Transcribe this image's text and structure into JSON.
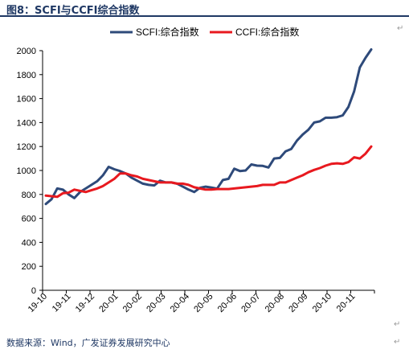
{
  "header": {
    "title": "图8：SCFI与CCFI综合指数"
  },
  "footer": {
    "source": "数据来源：Wind，广发证券发展研究中心"
  },
  "chart_data": {
    "type": "line",
    "title": "",
    "xlabel": "",
    "ylabel": "",
    "ylim": [
      0,
      2000
    ],
    "y_ticks": [
      0,
      200,
      400,
      600,
      800,
      1000,
      1200,
      1400,
      1600,
      1800,
      2000
    ],
    "x_tick_labels": [
      "19-10",
      "19-11",
      "19-12",
      "20-01",
      "20-02",
      "20-03",
      "20-04",
      "20-05",
      "20-06",
      "20-07",
      "20-08",
      "20-09",
      "20-10",
      "20-11"
    ],
    "grid": false,
    "legend_position": "top",
    "series": [
      {
        "name": "SCFI:综合指数",
        "color": "#2e4a7a",
        "values": [
          720,
          760,
          850,
          840,
          800,
          770,
          820,
          850,
          880,
          910,
          960,
          1030,
          1010,
          995,
          975,
          940,
          915,
          890,
          880,
          875,
          915,
          900,
          900,
          890,
          865,
          840,
          820,
          855,
          865,
          858,
          848,
          920,
          930,
          1015,
          995,
          1000,
          1050,
          1040,
          1038,
          1025,
          1100,
          1105,
          1160,
          1180,
          1250,
          1300,
          1340,
          1400,
          1410,
          1440,
          1440,
          1445,
          1460,
          1530,
          1660,
          1860,
          1940,
          2010
        ]
      },
      {
        "name": "CCFI:综合指数",
        "color": "#e8191f",
        "values": [
          790,
          785,
          780,
          810,
          815,
          840,
          830,
          820,
          835,
          850,
          870,
          900,
          930,
          975,
          975,
          960,
          950,
          930,
          920,
          910,
          900,
          900,
          900,
          890,
          890,
          880,
          860,
          850,
          840,
          840,
          845,
          845,
          845,
          850,
          855,
          860,
          865,
          870,
          880,
          880,
          880,
          900,
          900,
          920,
          940,
          960,
          985,
          1005,
          1020,
          1040,
          1055,
          1060,
          1055,
          1070,
          1110,
          1100,
          1140,
          1200
        ]
      }
    ]
  }
}
